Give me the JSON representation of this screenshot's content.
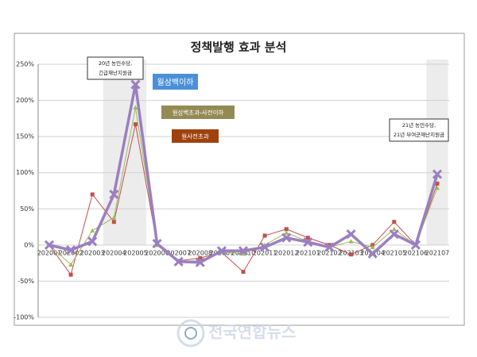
{
  "chart_data": {
    "type": "line",
    "title": "정책발행 효과 분석",
    "categories": [
      "202001",
      "202002",
      "202003",
      "202004",
      "202005",
      "202006",
      "202007",
      "202008",
      "202009",
      "202010",
      "202011",
      "202012",
      "202101",
      "202102",
      "202103",
      "202104",
      "202105",
      "202106",
      "202107"
    ],
    "series": [
      {
        "name": "월삼백이하",
        "color": "#9b7fc0",
        "label_color": "#4a90d9",
        "marker": "x",
        "values": [
          0,
          -7,
          5,
          70,
          222,
          2,
          -23,
          -24,
          -8,
          -8,
          -3,
          10,
          4,
          -3,
          15,
          -12,
          15,
          0,
          98
        ]
      },
      {
        "name": "월삼백초과-사전이하",
        "color": "#9bbb59",
        "label_color": "#948a54",
        "marker": "triangle",
        "values": [
          0,
          -27,
          20,
          38,
          190,
          0,
          -22,
          -22,
          -10,
          -12,
          0,
          17,
          5,
          -3,
          5,
          -3,
          22,
          0,
          79
        ]
      },
      {
        "name": "월사전초과",
        "color": "#c0504d",
        "label_color": "#a0420e",
        "marker": "square",
        "values": [
          0,
          -41,
          70,
          32,
          167,
          1,
          -22,
          -18,
          -10,
          -37,
          13,
          22,
          10,
          0,
          -13,
          0,
          32,
          0,
          85
        ]
      }
    ],
    "ylim": [
      -100,
      250
    ],
    "yticks": [
      {
        "value": -100,
        "label": "-100%"
      },
      {
        "value": -50,
        "label": "-50%"
      },
      {
        "value": 0,
        "label": "0%"
      },
      {
        "value": 50,
        "label": "50%"
      },
      {
        "value": 100,
        "label": "100%"
      },
      {
        "value": 150,
        "label": "150%"
      },
      {
        "value": 200,
        "label": "200%"
      },
      {
        "value": 250,
        "label": "250%"
      }
    ],
    "grid": true,
    "annotations": [
      {
        "lines": [
          "20년 농민수당,",
          "긴급재난지원금"
        ],
        "span": [
          "202004",
          "202005"
        ]
      },
      {
        "lines": [
          "21년 농민수당,",
          "21년 부여군재난지원금"
        ],
        "span": [
          "202107",
          "202107"
        ]
      }
    ],
    "watermark": "전국연합뉴스"
  }
}
